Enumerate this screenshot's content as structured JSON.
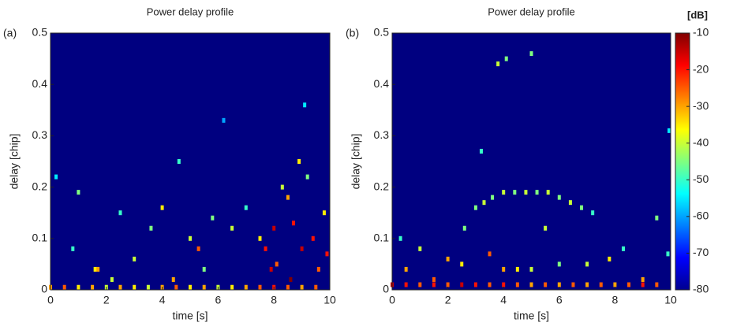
{
  "chart_data": [
    {
      "type": "heatmap",
      "panel_label": "(a)",
      "title": "Power delay profile",
      "x_label": "time [s]",
      "y_label": "delay [chip]",
      "xlim": [
        0,
        10
      ],
      "xticks": [
        0,
        2,
        4,
        6,
        8,
        10
      ],
      "ylim": [
        0,
        0.5
      ],
      "yticks": [
        0,
        0.1,
        0.2,
        0.3,
        0.4,
        0.5
      ],
      "clim": [
        -80,
        -10
      ],
      "x": [
        0,
        0.5,
        1,
        1.5,
        2,
        2.5,
        3,
        3.5,
        4,
        4.5,
        5,
        5.5,
        6,
        6.5,
        7,
        7.5,
        8,
        8.5,
        9,
        9.5,
        0.2,
        1.0,
        1.6,
        1.7,
        2.5,
        3.0,
        3.6,
        4.0,
        4.4,
        4.6,
        5.0,
        5.3,
        5.8,
        6.2,
        6.5,
        7.0,
        7.5,
        7.7,
        8.0,
        8.1,
        8.3,
        8.5,
        8.7,
        8.9,
        9.0,
        9.2,
        9.4,
        9.6,
        9.8,
        9.9,
        8.6,
        7.9,
        9.1,
        5.5,
        2.2,
        0.8
      ],
      "y": [
        0.005,
        0.005,
        0.005,
        0.005,
        0.005,
        0.005,
        0.005,
        0.005,
        0.005,
        0.005,
        0.005,
        0.005,
        0.005,
        0.005,
        0.005,
        0.005,
        0.005,
        0.005,
        0.005,
        0.005,
        0.22,
        0.19,
        0.04,
        0.04,
        0.15,
        0.06,
        0.12,
        0.16,
        0.02,
        0.25,
        0.1,
        0.08,
        0.14,
        0.33,
        0.12,
        0.16,
        0.1,
        0.08,
        0.12,
        0.05,
        0.2,
        0.18,
        0.13,
        0.25,
        0.08,
        0.22,
        0.1,
        0.04,
        0.15,
        0.07,
        0.02,
        0.04,
        0.36,
        0.04,
        0.02,
        0.08
      ],
      "values": [
        -30,
        -25,
        -35,
        -30,
        -40,
        -30,
        -35,
        -40,
        -30,
        -25,
        -35,
        -30,
        -40,
        -35,
        -30,
        -25,
        -20,
        -25,
        -30,
        -25,
        -55,
        -45,
        -35,
        -30,
        -50,
        -40,
        -45,
        -35,
        -30,
        -50,
        -40,
        -25,
        -45,
        -60,
        -40,
        -50,
        -35,
        -20,
        -15,
        -25,
        -40,
        -30,
        -20,
        -35,
        -15,
        -45,
        -20,
        -25,
        -35,
        -20,
        -10,
        -15,
        -55,
        -45,
        -40,
        -50
      ]
    },
    {
      "type": "heatmap",
      "panel_label": "(b)",
      "title": "Power delay profile",
      "x_label": "time [s]",
      "y_label": "delay [chip]",
      "xlim": [
        0,
        10
      ],
      "xticks": [
        0,
        2,
        4,
        6,
        8,
        10
      ],
      "ylim": [
        0,
        0.5
      ],
      "yticks": [
        0,
        0.1,
        0.2,
        0.3,
        0.4,
        0.5
      ],
      "clim": [
        -80,
        -10
      ],
      "x": [
        0,
        0.5,
        1,
        1.5,
        2,
        2.5,
        3,
        3.5,
        4,
        4.5,
        5,
        5.5,
        6,
        6.5,
        7,
        7.5,
        8,
        8.5,
        9,
        9.5,
        3.0,
        3.3,
        3.6,
        4.0,
        4.4,
        4.8,
        5.2,
        5.6,
        6.0,
        6.4,
        6.8,
        7.2,
        3.8,
        4.1,
        5.0,
        3.2,
        2.6,
        2.0,
        2.5,
        3.5,
        4.0,
        4.5,
        5.0,
        5.5,
        6.0,
        7.0,
        7.8,
        8.3,
        9.5,
        9.9,
        0.5,
        1.0,
        1.5,
        0.3,
        9.0,
        9.95
      ],
      "y": [
        0.01,
        0.01,
        0.01,
        0.01,
        0.01,
        0.01,
        0.01,
        0.01,
        0.01,
        0.01,
        0.01,
        0.01,
        0.01,
        0.01,
        0.01,
        0.01,
        0.01,
        0.01,
        0.01,
        0.01,
        0.16,
        0.17,
        0.18,
        0.19,
        0.19,
        0.19,
        0.19,
        0.19,
        0.18,
        0.17,
        0.16,
        0.15,
        0.44,
        0.45,
        0.46,
        0.27,
        0.12,
        0.06,
        0.05,
        0.07,
        0.04,
        0.04,
        0.04,
        0.12,
        0.05,
        0.05,
        0.06,
        0.08,
        0.14,
        0.07,
        0.04,
        0.08,
        0.02,
        0.1,
        0.02,
        0.31
      ],
      "values": [
        -15,
        -20,
        -25,
        -20,
        -25,
        -15,
        -20,
        -25,
        -20,
        -25,
        -30,
        -25,
        -30,
        -25,
        -30,
        -25,
        -30,
        -25,
        -20,
        -25,
        -45,
        -40,
        -45,
        -40,
        -45,
        -40,
        -45,
        -40,
        -45,
        -40,
        -45,
        -50,
        -40,
        -45,
        -45,
        -50,
        -45,
        -30,
        -35,
        -25,
        -30,
        -35,
        -40,
        -40,
        -45,
        -40,
        -35,
        -50,
        -45,
        -50,
        -30,
        -40,
        -25,
        -50,
        -30,
        -55
      ],
      "colorbar": {
        "label": "[dB]",
        "ticks": [
          -10,
          -20,
          -30,
          -40,
          -50,
          -60,
          -70,
          -80
        ]
      }
    }
  ]
}
